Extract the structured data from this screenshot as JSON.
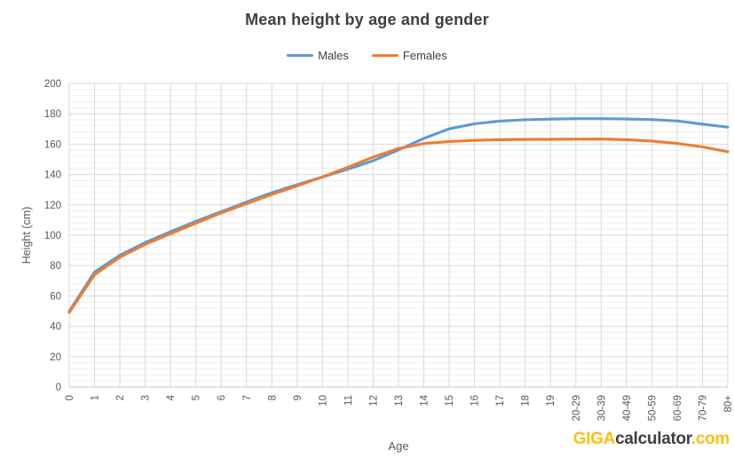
{
  "chart_data": {
    "type": "line",
    "title": "Mean height by age and gender",
    "xlabel": "Age",
    "ylabel": "Height (cm)",
    "ylim": [
      0,
      200
    ],
    "y_major_step": 20,
    "y_minor_step": 4,
    "grid": "horizontal major+minor, vertical line per category",
    "legend_position": "top-center",
    "categories": [
      "0",
      "1",
      "2",
      "3",
      "4",
      "5",
      "6",
      "7",
      "8",
      "9",
      "10",
      "11",
      "12",
      "13",
      "14",
      "15",
      "16",
      "17",
      "18",
      "19",
      "20-29",
      "30-39",
      "40-49",
      "50-59",
      "60-69",
      "70-79",
      "80+"
    ],
    "series": [
      {
        "name": "Males",
        "color": "#5B9BD5",
        "values": [
          49.9,
          75.7,
          86.8,
          95.2,
          102.3,
          109.2,
          115.5,
          121.9,
          128.0,
          133.3,
          138.4,
          143.5,
          149.1,
          156.2,
          163.8,
          170.1,
          173.4,
          175.2,
          176.1,
          176.5,
          176.8,
          176.8,
          176.6,
          176.2,
          175.3,
          173.2,
          171.2
        ]
      },
      {
        "name": "Females",
        "color": "#ED7D31",
        "values": [
          49.1,
          74.0,
          85.5,
          94.0,
          101.0,
          107.9,
          114.7,
          120.8,
          126.9,
          132.5,
          138.4,
          144.8,
          151.5,
          157.1,
          160.4,
          161.7,
          162.5,
          162.9,
          163.1,
          163.2,
          163.3,
          163.4,
          162.9,
          162.0,
          160.5,
          158.2,
          155.0
        ]
      }
    ]
  },
  "colors": {
    "title_text": "#404040",
    "axis_text": "#595959",
    "grid_major": "#d9d9d9",
    "grid_minor": "#f0f0f0",
    "axis_line": "#c6c6c6"
  },
  "branding": {
    "giga": "GIGA",
    "calculator": "calculator",
    "dotcom": ".com",
    "accent": "#FCBF12",
    "dark": "#3f3f3f"
  }
}
